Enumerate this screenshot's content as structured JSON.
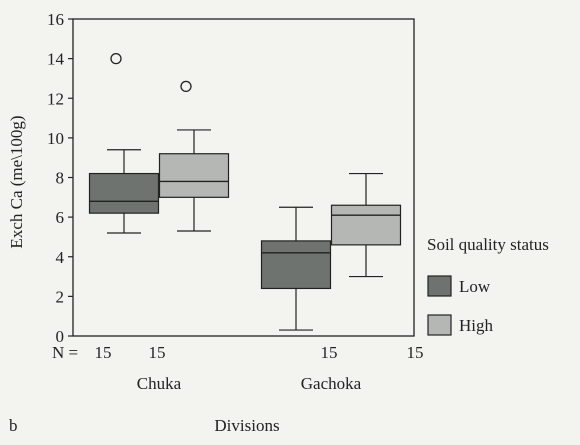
{
  "panel_label": "b",
  "chart_data": {
    "type": "boxplot",
    "xlabel": "Divisions",
    "ylabel": "Exch Ca (me\\100g)",
    "ylim": [
      0,
      16
    ],
    "yticks": [
      0,
      2,
      4,
      6,
      8,
      10,
      12,
      14,
      16
    ],
    "grid": false,
    "categories": [
      "Chuka",
      "Gachoka"
    ],
    "n_prefix": "N =",
    "n_labels": [
      "15",
      "15",
      "15",
      "15"
    ],
    "series": [
      {
        "name": "Low",
        "color": "#6f736f",
        "boxes": [
          {
            "category": "Chuka",
            "whisker_low": 5.2,
            "q1": 6.2,
            "median": 6.8,
            "q3": 8.2,
            "whisker_high": 9.4,
            "outliers": [
              14.0
            ]
          },
          {
            "category": "Gachoka",
            "whisker_low": 0.3,
            "q1": 2.4,
            "median": 4.2,
            "q3": 4.8,
            "whisker_high": 6.5,
            "outliers": []
          }
        ]
      },
      {
        "name": "High",
        "color": "#b5b7b4",
        "boxes": [
          {
            "category": "Chuka",
            "whisker_low": 5.3,
            "q1": 7.0,
            "median": 7.8,
            "q3": 9.2,
            "whisker_high": 10.4,
            "outliers": [
              12.6
            ]
          },
          {
            "category": "Gachoka",
            "whisker_low": 3.0,
            "q1": 4.6,
            "median": 6.1,
            "q3": 6.6,
            "whisker_high": 8.2,
            "outliers": []
          }
        ]
      }
    ],
    "legend": {
      "title": "Soil quality status",
      "position": "right",
      "items": [
        "Low",
        "High"
      ]
    }
  }
}
